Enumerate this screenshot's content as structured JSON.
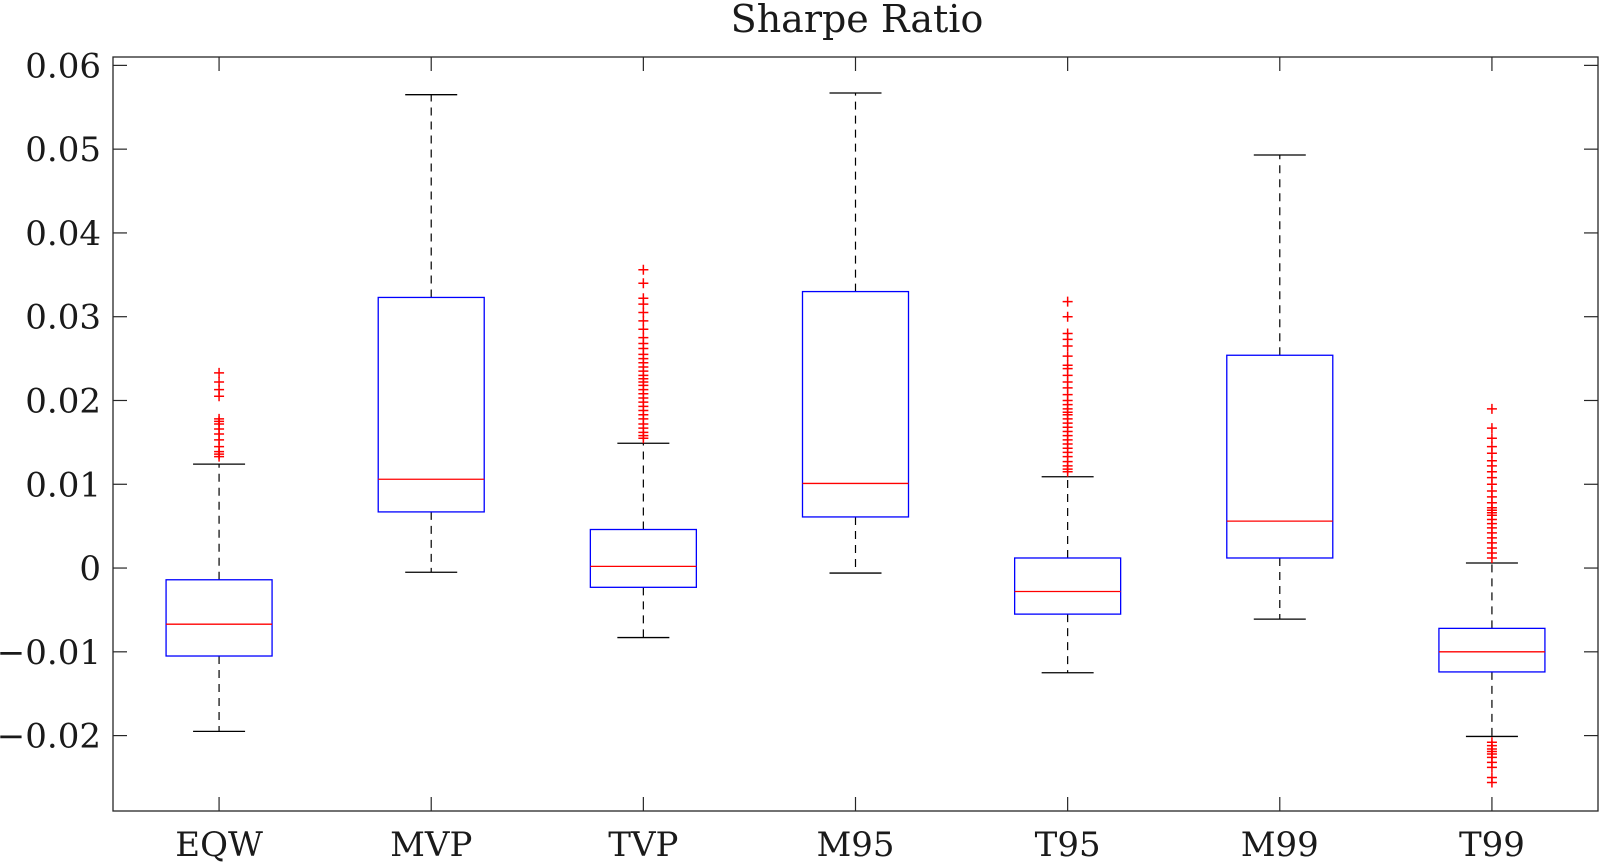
{
  "chart_data": {
    "type": "box",
    "title": "Sharpe Ratio",
    "xlabel": "",
    "ylabel": "",
    "ylim": [
      -0.029,
      0.061
    ],
    "yticks": [
      {
        "value": 0.06,
        "label": "0.06"
      },
      {
        "value": 0.05,
        "label": "0.05"
      },
      {
        "value": 0.04,
        "label": "0.04"
      },
      {
        "value": 0.03,
        "label": "0.03"
      },
      {
        "value": 0.02,
        "label": "0.02"
      },
      {
        "value": 0.01,
        "label": "0.01"
      },
      {
        "value": 0,
        "label": "0"
      },
      {
        "value": -0.01,
        "label": "−0.01"
      },
      {
        "value": -0.02,
        "label": "−0.02"
      }
    ],
    "grid": false,
    "colors": {
      "box": "#0000ff",
      "median": "#ff0000",
      "whisker": "#000000",
      "outlier": "#ff0000",
      "axis": "#262626"
    },
    "categories": [
      "EQW",
      "MVP",
      "TVP",
      "M95",
      "T95",
      "M99",
      "T99"
    ],
    "boxes": [
      {
        "label": "EQW",
        "whisker_low": -0.0195,
        "q1": -0.0105,
        "median": -0.0067,
        "q3": -0.0014,
        "whisker_high": 0.0124,
        "outliers": [
          0.0133,
          0.0136,
          0.0139,
          0.0145,
          0.0153,
          0.016,
          0.0166,
          0.0172,
          0.0175,
          0.0178,
          0.0205,
          0.0213,
          0.0222,
          0.0233
        ]
      },
      {
        "label": "MVP",
        "whisker_low": -0.0005,
        "q1": 0.0067,
        "median": 0.0106,
        "q3": 0.0323,
        "whisker_high": 0.0565,
        "outliers": []
      },
      {
        "label": "TVP",
        "whisker_low": -0.0083,
        "q1": -0.0023,
        "median": 0.0002,
        "q3": 0.0046,
        "whisker_high": 0.0149,
        "outliers": [
          0.0155,
          0.0158,
          0.0162,
          0.0167,
          0.0172,
          0.0178,
          0.0183,
          0.0188,
          0.0193,
          0.0198,
          0.0203,
          0.0208,
          0.0213,
          0.0218,
          0.0222,
          0.0226,
          0.023,
          0.0235,
          0.024,
          0.0245,
          0.025,
          0.0255,
          0.0262,
          0.0268,
          0.0275,
          0.0285,
          0.0295,
          0.0305,
          0.0315,
          0.0322,
          0.034,
          0.0356
        ]
      },
      {
        "label": "M95",
        "whisker_low": -0.0006,
        "q1": 0.0061,
        "median": 0.0101,
        "q3": 0.033,
        "whisker_high": 0.0567,
        "outliers": []
      },
      {
        "label": "T95",
        "whisker_low": -0.0125,
        "q1": -0.0055,
        "median": -0.0028,
        "q3": 0.0012,
        "whisker_high": 0.0109,
        "outliers": [
          0.0115,
          0.0118,
          0.0122,
          0.0127,
          0.0133,
          0.0138,
          0.0143,
          0.0148,
          0.0153,
          0.0158,
          0.0163,
          0.0168,
          0.0173,
          0.0178,
          0.0183,
          0.0186,
          0.019,
          0.0195,
          0.02,
          0.0207,
          0.0215,
          0.0222,
          0.023,
          0.0238,
          0.0242,
          0.0253,
          0.0265,
          0.0273,
          0.028,
          0.03,
          0.0318
        ]
      },
      {
        "label": "M99",
        "whisker_low": -0.0061,
        "q1": 0.0012,
        "median": 0.0056,
        "q3": 0.0254,
        "whisker_high": 0.0493,
        "outliers": []
      },
      {
        "label": "T99",
        "whisker_low": -0.0201,
        "q1": -0.0124,
        "median": -0.01,
        "q3": -0.0072,
        "whisker_high": 0.0006,
        "outliers": [
          0.0012,
          0.0018,
          0.0024,
          0.003,
          0.0036,
          0.0042,
          0.0048,
          0.0053,
          0.0058,
          0.0063,
          0.0066,
          0.0069,
          0.0072,
          0.0078,
          0.0085,
          0.0092,
          0.01,
          0.0108,
          0.0115,
          0.0122,
          0.0128,
          0.0137,
          0.0145,
          0.0155,
          0.0167,
          0.019,
          -0.0208,
          -0.0212,
          -0.0216,
          -0.0219,
          -0.0222,
          -0.0226,
          -0.0232,
          -0.0238,
          -0.025,
          -0.0256
        ]
      }
    ]
  }
}
